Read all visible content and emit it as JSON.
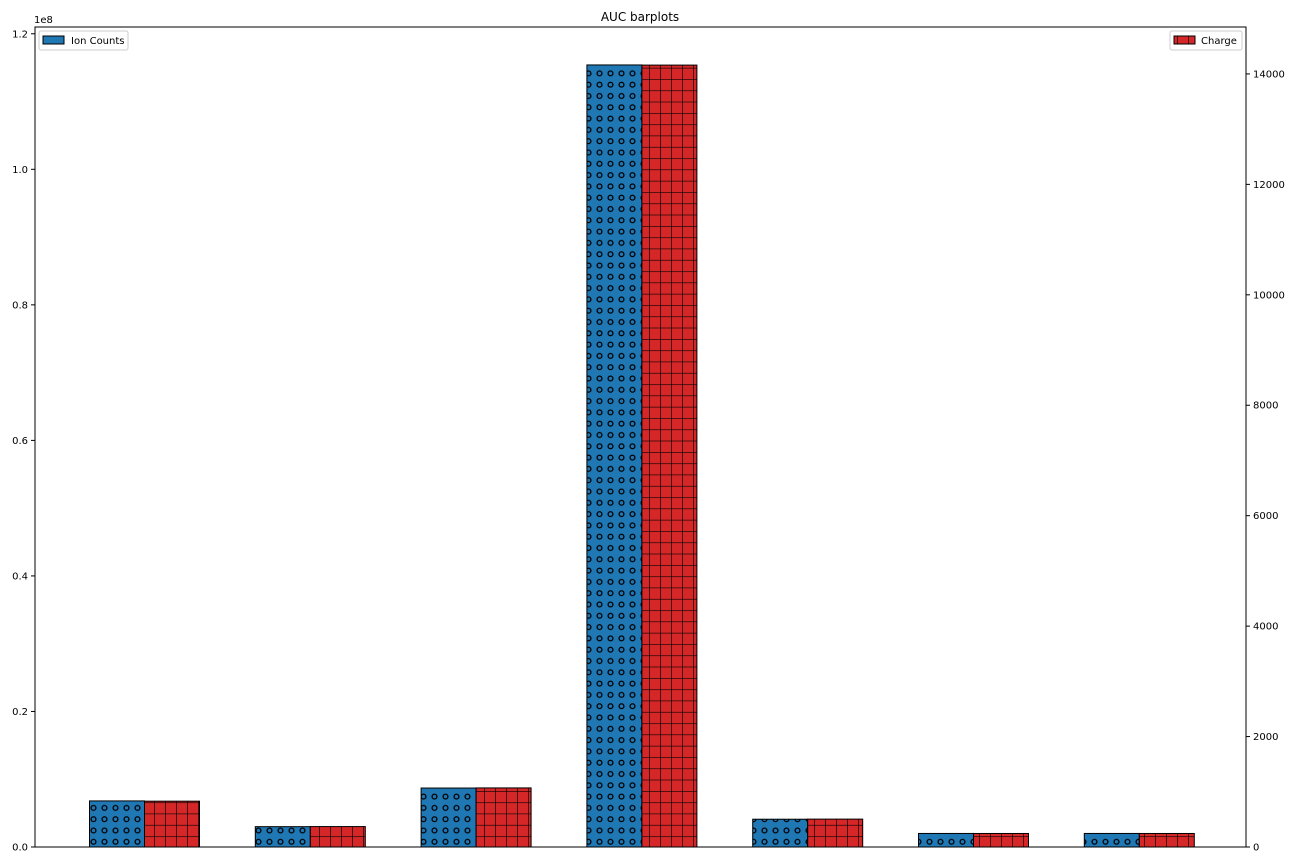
{
  "chart_data": {
    "type": "bar",
    "title": "AUC barplots",
    "xlabel": "",
    "categories": [
      "",
      "",
      "",
      "",
      "",
      "",
      ""
    ],
    "grid": false,
    "left_axis": {
      "label": "",
      "offset_text": "1e8",
      "ylim": [
        0,
        1.21
      ],
      "ticks": [
        0.0,
        0.2,
        0.4,
        0.6,
        0.8,
        1.0,
        1.2
      ],
      "tick_labels": [
        "0.0",
        "0.2",
        "0.4",
        "0.6",
        "0.8",
        "1.0",
        "1.2"
      ]
    },
    "right_axis": {
      "label": "",
      "ylim": [
        0,
        14850
      ],
      "ticks": [
        0,
        2000,
        4000,
        6000,
        8000,
        10000,
        12000,
        14000
      ],
      "tick_labels": [
        "0",
        "2000",
        "4000",
        "6000",
        "8000",
        "10000",
        "12000",
        "14000"
      ]
    },
    "series": [
      {
        "name": "Ion Counts",
        "axis": "left",
        "color": "#1f77b4",
        "hatch": "circles",
        "legend_position": "top-left",
        "values": [
          0.068,
          0.03,
          0.087,
          1.154,
          0.041,
          0.02,
          0.02
        ]
      },
      {
        "name": "Charge",
        "axis": "right",
        "color": "#d62728",
        "hatch": "grid",
        "legend_position": "top-right",
        "values": [
          830,
          370,
          1070,
          14160,
          505,
          245,
          245
        ]
      }
    ]
  }
}
